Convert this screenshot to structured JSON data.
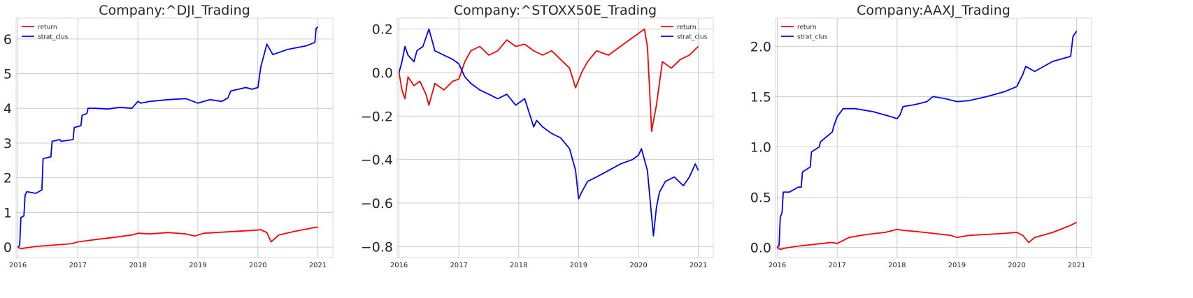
{
  "chart_data": [
    {
      "type": "line",
      "title": "Company:^DJI_Trading",
      "xlabel": "",
      "ylabel": "",
      "x_ticks": [
        "2016",
        "2017",
        "2018",
        "2019",
        "2020",
        "2021"
      ],
      "y_ticks": [
        "0",
        "1",
        "2",
        "3",
        "4",
        "5",
        "6"
      ],
      "xlim": [
        2015.97,
        2021.25
      ],
      "ylim": [
        -0.3,
        6.6
      ],
      "grid": true,
      "legend": "top-left",
      "series": [
        {
          "name": "return",
          "color": "#ff0000",
          "x": [
            2016.0,
            2016.05,
            2016.1,
            2016.3,
            2016.6,
            2016.9,
            2017.0,
            2017.3,
            2017.6,
            2017.9,
            2018.0,
            2018.2,
            2018.5,
            2018.8,
            2018.95,
            2019.1,
            2019.3,
            2019.6,
            2019.9,
            2020.05,
            2020.15,
            2020.22,
            2020.35,
            2020.6,
            2020.9,
            2021.0
          ],
          "values": [
            0.0,
            -0.05,
            -0.03,
            0.02,
            0.06,
            0.1,
            0.15,
            0.22,
            0.28,
            0.35,
            0.4,
            0.38,
            0.42,
            0.38,
            0.32,
            0.4,
            0.42,
            0.45,
            0.48,
            0.5,
            0.42,
            0.15,
            0.35,
            0.45,
            0.55,
            0.58
          ]
        },
        {
          "name": "strat_clus",
          "color": "#0000ff",
          "x": [
            2016.0,
            2016.03,
            2016.05,
            2016.1,
            2016.12,
            2016.15,
            2016.3,
            2016.4,
            2016.42,
            2016.55,
            2016.57,
            2016.7,
            2016.72,
            2016.92,
            2016.94,
            2017.05,
            2017.07,
            2017.15,
            2017.17,
            2017.3,
            2017.5,
            2017.7,
            2017.9,
            2018.0,
            2018.05,
            2018.2,
            2018.5,
            2018.8,
            2019.0,
            2019.2,
            2019.4,
            2019.5,
            2019.55,
            2019.8,
            2019.9,
            2020.0,
            2020.05,
            2020.15,
            2020.25,
            2020.5,
            2020.8,
            2020.95,
            2020.97,
            2021.0
          ],
          "values": [
            0.0,
            0.05,
            0.85,
            0.9,
            1.5,
            1.6,
            1.55,
            1.65,
            2.55,
            2.6,
            3.05,
            3.1,
            3.05,
            3.1,
            3.45,
            3.5,
            3.8,
            3.85,
            4.0,
            4.0,
            3.98,
            4.03,
            4.0,
            4.2,
            4.15,
            4.2,
            4.25,
            4.28,
            4.15,
            4.25,
            4.2,
            4.3,
            4.5,
            4.6,
            4.55,
            4.6,
            5.2,
            5.85,
            5.55,
            5.7,
            5.8,
            5.9,
            6.3,
            6.35
          ]
        }
      ]
    },
    {
      "type": "line",
      "title": "Company:^STOXX50E_Trading",
      "xlabel": "",
      "ylabel": "",
      "x_ticks": [
        "2016",
        "2017",
        "2018",
        "2019",
        "2020",
        "2021"
      ],
      "y_ticks": [
        "0.2",
        "0.0",
        "−0.2",
        "−0.4",
        "−0.6",
        "−0.8"
      ],
      "xlim": [
        2015.97,
        2021.25
      ],
      "ylim": [
        -0.85,
        0.25
      ],
      "grid": true,
      "legend": "top-right",
      "series": [
        {
          "name": "return",
          "color": "#ff0000",
          "x": [
            2016.0,
            2016.05,
            2016.1,
            2016.15,
            2016.25,
            2016.35,
            2016.45,
            2016.5,
            2016.6,
            2016.75,
            2016.9,
            2017.0,
            2017.1,
            2017.2,
            2017.35,
            2017.5,
            2017.65,
            2017.8,
            2017.95,
            2018.1,
            2018.25,
            2018.4,
            2018.55,
            2018.7,
            2018.85,
            2018.95,
            2019.05,
            2019.15,
            2019.3,
            2019.5,
            2019.7,
            2019.9,
            2020.0,
            2020.1,
            2020.15,
            2020.2,
            2020.22,
            2020.3,
            2020.4,
            2020.55,
            2020.7,
            2020.85,
            2021.0
          ],
          "values": [
            0.0,
            -0.08,
            -0.12,
            -0.02,
            -0.06,
            -0.04,
            -0.1,
            -0.15,
            -0.05,
            -0.08,
            -0.04,
            -0.03,
            0.05,
            0.1,
            0.12,
            0.08,
            0.1,
            0.15,
            0.12,
            0.13,
            0.1,
            0.08,
            0.1,
            0.06,
            0.02,
            -0.07,
            0.0,
            0.05,
            0.1,
            0.08,
            0.12,
            0.16,
            0.18,
            0.2,
            0.12,
            -0.15,
            -0.27,
            -0.15,
            0.05,
            0.02,
            0.06,
            0.08,
            0.12
          ]
        },
        {
          "name": "strat_clus",
          "color": "#0000ff",
          "x": [
            2016.0,
            2016.05,
            2016.1,
            2016.15,
            2016.25,
            2016.3,
            2016.4,
            2016.5,
            2016.6,
            2016.75,
            2016.9,
            2017.0,
            2017.1,
            2017.2,
            2017.35,
            2017.5,
            2017.65,
            2017.8,
            2017.95,
            2018.1,
            2018.25,
            2018.3,
            2018.4,
            2018.55,
            2018.7,
            2018.85,
            2018.95,
            2019.0,
            2019.05,
            2019.15,
            2019.3,
            2019.5,
            2019.7,
            2019.9,
            2020.0,
            2020.05,
            2020.15,
            2020.2,
            2020.25,
            2020.3,
            2020.35,
            2020.45,
            2020.6,
            2020.75,
            2020.85,
            2020.95,
            2021.0
          ],
          "values": [
            0.0,
            0.05,
            0.12,
            0.08,
            0.05,
            0.1,
            0.12,
            0.2,
            0.1,
            0.08,
            0.06,
            0.04,
            -0.02,
            -0.05,
            -0.08,
            -0.1,
            -0.12,
            -0.1,
            -0.15,
            -0.12,
            -0.25,
            -0.22,
            -0.25,
            -0.28,
            -0.3,
            -0.35,
            -0.45,
            -0.58,
            -0.55,
            -0.5,
            -0.48,
            -0.45,
            -0.42,
            -0.4,
            -0.38,
            -0.35,
            -0.45,
            -0.6,
            -0.75,
            -0.62,
            -0.55,
            -0.5,
            -0.48,
            -0.52,
            -0.48,
            -0.42,
            -0.45
          ]
        }
      ]
    },
    {
      "type": "line",
      "title": "Company:AAXJ_Trading",
      "xlabel": "",
      "ylabel": "",
      "x_ticks": [
        "2016",
        "2017",
        "2018",
        "2019",
        "2020",
        "2021"
      ],
      "y_ticks": [
        "0.0",
        "0.5",
        "1.0",
        "1.5",
        "2.0"
      ],
      "xlim": [
        2015.97,
        2021.25
      ],
      "ylim": [
        -0.1,
        2.28
      ],
      "grid": true,
      "legend": "top-left",
      "series": [
        {
          "name": "return",
          "color": "#ff0000",
          "x": [
            2016.0,
            2016.05,
            2016.1,
            2016.3,
            2016.6,
            2016.9,
            2017.0,
            2017.2,
            2017.5,
            2017.8,
            2018.0,
            2018.1,
            2018.3,
            2018.6,
            2018.9,
            2019.0,
            2019.2,
            2019.5,
            2019.8,
            2020.0,
            2020.1,
            2020.2,
            2020.3,
            2020.6,
            2020.9,
            2021.0
          ],
          "values": [
            0.0,
            -0.02,
            -0.01,
            0.01,
            0.03,
            0.05,
            0.04,
            0.1,
            0.13,
            0.15,
            0.18,
            0.17,
            0.16,
            0.14,
            0.12,
            0.1,
            0.12,
            0.13,
            0.14,
            0.15,
            0.12,
            0.05,
            0.1,
            0.15,
            0.22,
            0.25
          ]
        },
        {
          "name": "strat_clus",
          "color": "#0000ff",
          "x": [
            2016.0,
            2016.03,
            2016.05,
            2016.08,
            2016.1,
            2016.2,
            2016.35,
            2016.4,
            2016.42,
            2016.55,
            2016.57,
            2016.7,
            2016.72,
            2016.92,
            2016.94,
            2017.0,
            2017.1,
            2017.3,
            2017.6,
            2017.9,
            2018.0,
            2018.05,
            2018.1,
            2018.3,
            2018.5,
            2018.6,
            2018.8,
            2019.0,
            2019.2,
            2019.5,
            2019.8,
            2020.0,
            2020.1,
            2020.15,
            2020.3,
            2020.6,
            2020.9,
            2020.94,
            2021.0
          ],
          "values": [
            0.0,
            0.02,
            0.3,
            0.35,
            0.55,
            0.55,
            0.6,
            0.6,
            0.75,
            0.8,
            0.95,
            1.0,
            1.05,
            1.15,
            1.2,
            1.3,
            1.38,
            1.38,
            1.35,
            1.3,
            1.28,
            1.32,
            1.4,
            1.42,
            1.45,
            1.5,
            1.48,
            1.45,
            1.46,
            1.5,
            1.55,
            1.6,
            1.72,
            1.8,
            1.75,
            1.85,
            1.9,
            2.1,
            2.15
          ]
        }
      ]
    }
  ]
}
